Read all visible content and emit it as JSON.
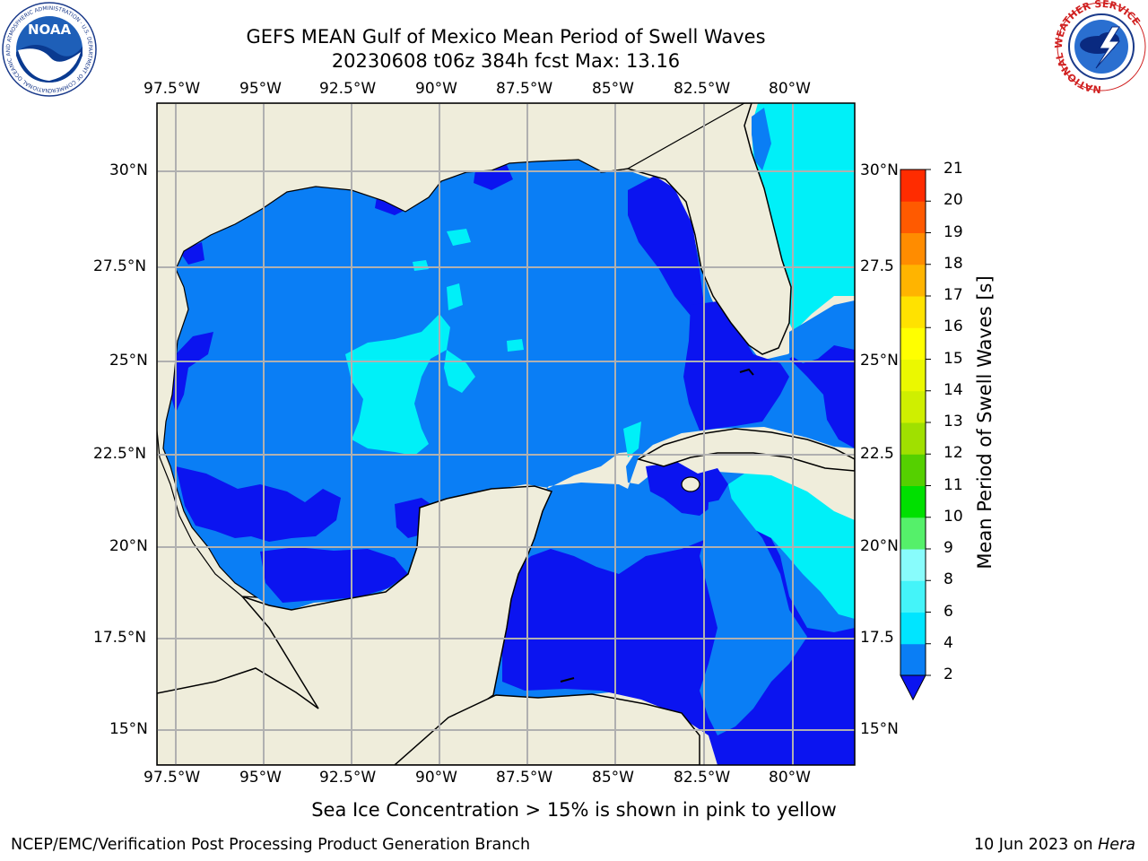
{
  "title": {
    "line1": "GEFS MEAN Gulf of Mexico Mean Period of Swell Waves",
    "line2": "20230608 t06z 384h fcst   Max: 13.16"
  },
  "logos": {
    "noaa_text": "NOAA",
    "noaa_ring": "NATIONAL OCEANIC AND ATMOSPHERIC ADMINISTRATION · U.S. DEPARTMENT OF COMMERCE",
    "nws_ring": "NATIONAL WEATHER SERVICE"
  },
  "axes": {
    "lon_ticks": [
      "97.5°W",
      "95°W",
      "92.5°W",
      "90°W",
      "87.5°W",
      "85°W",
      "82.5°W",
      "80°W"
    ],
    "lat_ticks_left": [
      "30°N",
      "27.5°N",
      "25°N",
      "22.5°N",
      "20°N",
      "17.5°N",
      "15°N"
    ],
    "lat_ticks_right": [
      "30°N",
      "27.5",
      "25°N",
      "22.5",
      "20°N",
      "17.5",
      "15°N"
    ]
  },
  "colorbar": {
    "label": "Mean Period of Swell Waves [s]",
    "ticks": [
      "2",
      "4",
      "6",
      "8",
      "9",
      "10",
      "11",
      "12",
      "13",
      "14",
      "15",
      "16",
      "17",
      "18",
      "19",
      "20",
      "21"
    ],
    "colors": [
      "#0a7ef5",
      "#00e5ff",
      "#44f4f9",
      "#88fcfc",
      "#55f06a",
      "#00e000",
      "#55d000",
      "#a0e000",
      "#cfef00",
      "#ebf800",
      "#ffff00",
      "#ffe200",
      "#ffb400",
      "#ff8c00",
      "#ff5a00",
      "#ff2c00",
      "#ff0000"
    ],
    "extend_color": "#0b14f0"
  },
  "colors": {
    "land": "#efeddb",
    "deep_blue": "#0b14f0",
    "mid_blue": "#0a7ef5",
    "cyan": "#00f0f8",
    "light_green": "#7ef000",
    "yellow_green": "#c8f040",
    "grid": "#b0b0b0"
  },
  "footer": {
    "note": "Sea Ice Concentration > 15% is shown in pink to yellow",
    "credit": "NCEP/EMC/Verification Post Processing Product Generation Branch",
    "date": "10 Jun 2023 on ",
    "machine": "Hera"
  }
}
